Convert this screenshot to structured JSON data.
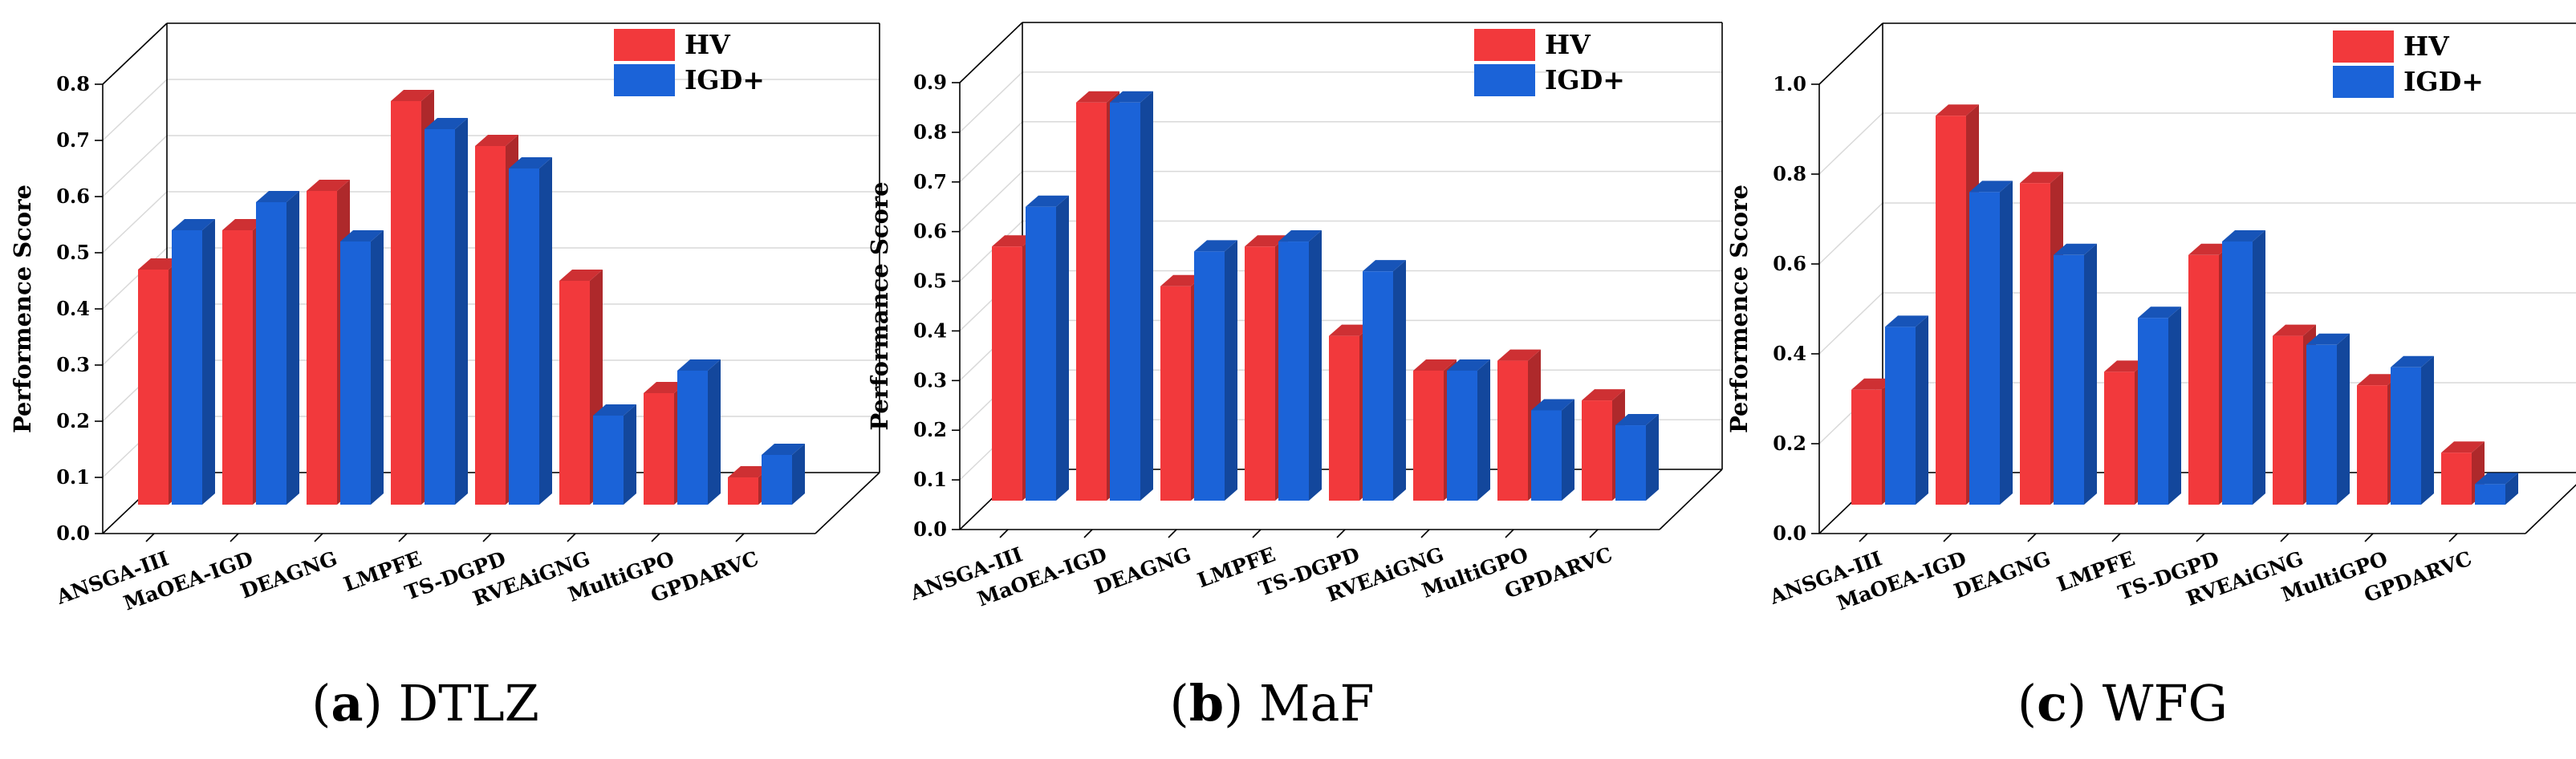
{
  "colors": {
    "hv": "#f2393c",
    "igd": "#1b63d8",
    "grid": "#d9d9d9",
    "axis": "#000000"
  },
  "chart_data": [
    {
      "type": "bar",
      "title": "",
      "caption": {
        "label": "a",
        "name": "DTLZ"
      },
      "ylabel": "Performence Score",
      "xlabel": "",
      "categories": [
        "ANSGA-III",
        "MaOEA-IGD",
        "DEAGNG",
        "LMPFE",
        "TS-DGPD",
        "RVEAiGNG",
        "MultiGPO",
        "GPDARVC"
      ],
      "series": [
        {
          "name": "HV",
          "values": [
            0.47,
            0.54,
            0.61,
            0.77,
            0.69,
            0.45,
            0.25,
            0.1
          ]
        },
        {
          "name": "IGD+",
          "values": [
            0.54,
            0.59,
            0.52,
            0.72,
            0.65,
            0.21,
            0.29,
            0.14
          ]
        }
      ],
      "ylim": [
        0,
        0.8
      ],
      "yticks": [
        "0.0",
        "0.1",
        "0.2",
        "0.3",
        "0.4",
        "0.5",
        "0.6",
        "0.7",
        "0.8"
      ],
      "grid": true,
      "legend": "top-right"
    },
    {
      "type": "bar",
      "title": "",
      "caption": {
        "label": "b",
        "name": "MaF"
      },
      "ylabel": "Performance Score",
      "xlabel": "",
      "categories": [
        "ANSGA-III",
        "MaOEA-IGD",
        "DEAGNG",
        "LMPFE",
        "TS-DGPD",
        "RVEAiGNG",
        "MultiGPO",
        "GPDARVC"
      ],
      "series": [
        {
          "name": "HV",
          "values": [
            0.57,
            0.86,
            0.49,
            0.57,
            0.39,
            0.32,
            0.34,
            0.26
          ]
        },
        {
          "name": "IGD+",
          "values": [
            0.65,
            0.86,
            0.56,
            0.58,
            0.52,
            0.32,
            0.24,
            0.21
          ]
        }
      ],
      "ylim": [
        0,
        0.9
      ],
      "yticks": [
        "0.0",
        "0.1",
        "0.2",
        "0.3",
        "0.4",
        "0.5",
        "0.6",
        "0.7",
        "0.8",
        "0.9"
      ],
      "grid": true,
      "legend": "top-right"
    },
    {
      "type": "bar",
      "title": "",
      "caption": {
        "label": "c",
        "name": "WFG"
      },
      "ylabel": "Performence Score",
      "xlabel": "",
      "categories": [
        "ANSGA-III",
        "MaOEA-IGD",
        "DEAGNG",
        "LMPFE",
        "TS-DGPD",
        "RVEAiGNG",
        "MultiGPO",
        "GPDARVC"
      ],
      "series": [
        {
          "name": "HV",
          "values": [
            0.32,
            0.93,
            0.78,
            0.36,
            0.62,
            0.44,
            0.33,
            0.18
          ]
        },
        {
          "name": "IGD+",
          "values": [
            0.46,
            0.76,
            0.62,
            0.48,
            0.65,
            0.42,
            0.37,
            0.11
          ]
        }
      ],
      "ylim": [
        0,
        1.0
      ],
      "yticks": [
        "0.0",
        "0.2",
        "0.4",
        "0.6",
        "0.8",
        "1.0"
      ],
      "grid": true,
      "legend": "top-right"
    }
  ]
}
